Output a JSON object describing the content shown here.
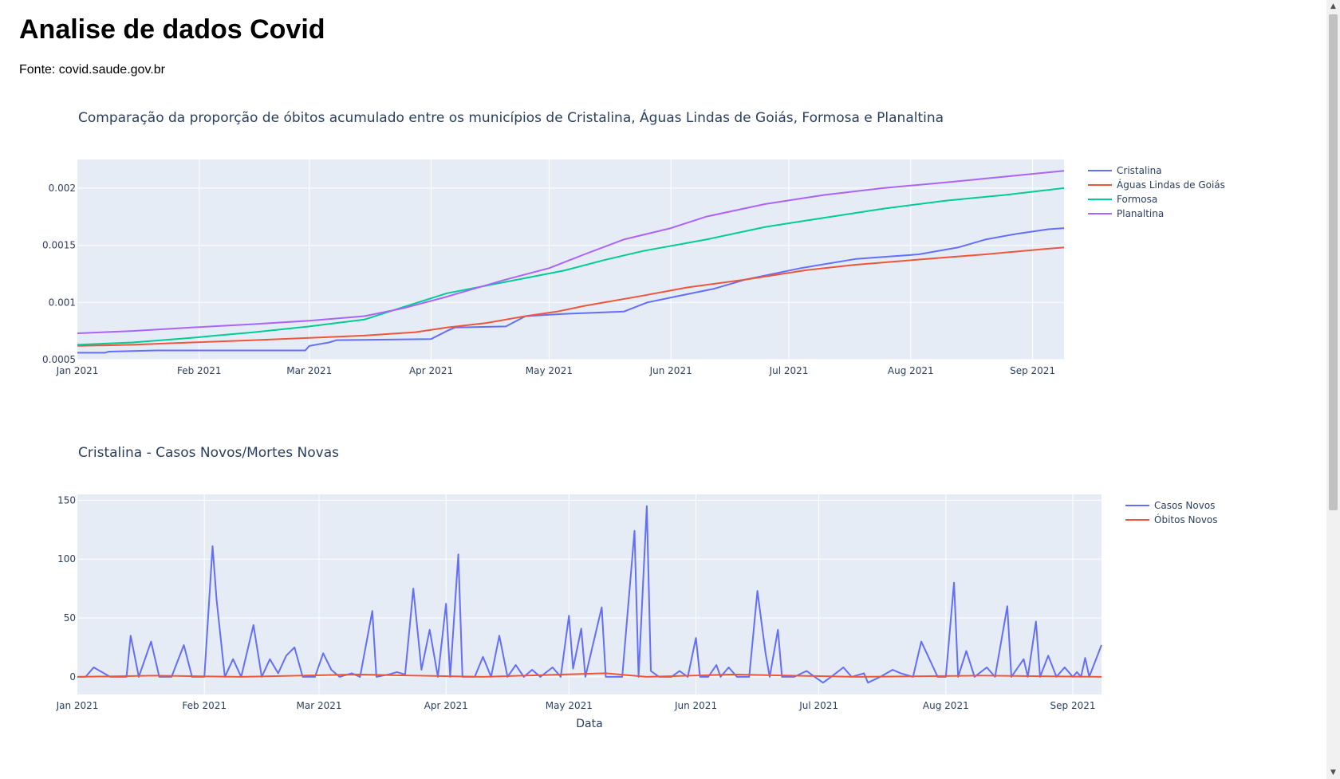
{
  "page": {
    "title": "Analise de dados Covid",
    "source": "Fonte: covid.saude.gov.br"
  },
  "chart_data": [
    {
      "type": "line",
      "title": "Comparação da proporção de óbitos acumulado entre os municípios de Cristalina, Águas Lindas de Goiás, Formosa e Planaltina",
      "x_ticks": [
        "Jan 2021",
        "Feb 2021",
        "Mar 2021",
        "Apr 2021",
        "May 2021",
        "Jun 2021",
        "Jul 2021",
        "Aug 2021",
        "Sep 2021"
      ],
      "y_ticks": [
        "0.0005",
        "0.001",
        "0.0015",
        "0.002"
      ],
      "ylim": [
        0.0005,
        0.00225
      ],
      "xlim": [
        "2021-01-01",
        "2021-09-09"
      ],
      "grid": true,
      "legend_position": "right",
      "series": [
        {
          "name": "Cristalina",
          "color": "#636efa",
          "points": [
            [
              "2021-01-01",
              0.00056
            ],
            [
              "2021-01-08",
              0.00056
            ],
            [
              "2021-01-09",
              0.00057
            ],
            [
              "2021-01-21",
              0.00058
            ],
            [
              "2021-02-28",
              0.00058
            ],
            [
              "2021-03-01",
              0.00062
            ],
            [
              "2021-03-06",
              0.00065
            ],
            [
              "2021-03-08",
              0.00067
            ],
            [
              "2021-04-01",
              0.00068
            ],
            [
              "2021-04-05",
              0.00075
            ],
            [
              "2021-04-07",
              0.00078
            ],
            [
              "2021-04-20",
              0.00079
            ],
            [
              "2021-04-25",
              0.00088
            ],
            [
              "2021-05-05",
              0.0009
            ],
            [
              "2021-05-20",
              0.00092
            ],
            [
              "2021-05-26",
              0.001
            ],
            [
              "2021-06-02",
              0.00105
            ],
            [
              "2021-06-12",
              0.00112
            ],
            [
              "2021-06-20",
              0.0012
            ],
            [
              "2021-07-04",
              0.0013
            ],
            [
              "2021-07-18",
              0.00138
            ],
            [
              "2021-08-03",
              0.00142
            ],
            [
              "2021-08-13",
              0.00148
            ],
            [
              "2021-08-20",
              0.00155
            ],
            [
              "2021-08-28",
              0.0016
            ],
            [
              "2021-09-05",
              0.00164
            ],
            [
              "2021-09-09",
              0.00165
            ]
          ]
        },
        {
          "name": "Águas Lindas de Goiás",
          "color": "#ef553b",
          "points": [
            [
              "2021-01-01",
              0.00062
            ],
            [
              "2021-01-15",
              0.00063
            ],
            [
              "2021-01-30",
              0.00065
            ],
            [
              "2021-02-15",
              0.00067
            ],
            [
              "2021-03-01",
              0.00069
            ],
            [
              "2021-03-15",
              0.00071
            ],
            [
              "2021-03-28",
              0.00074
            ],
            [
              "2021-04-05",
              0.00078
            ],
            [
              "2021-04-15",
              0.00082
            ],
            [
              "2021-04-25",
              0.00088
            ],
            [
              "2021-05-03",
              0.00092
            ],
            [
              "2021-05-10",
              0.00097
            ],
            [
              "2021-05-25",
              0.00106
            ],
            [
              "2021-06-05",
              0.00113
            ],
            [
              "2021-06-20",
              0.0012
            ],
            [
              "2021-07-05",
              0.00128
            ],
            [
              "2021-07-18",
              0.00133
            ],
            [
              "2021-08-05",
              0.00138
            ],
            [
              "2021-08-20",
              0.00142
            ],
            [
              "2021-09-05",
              0.00147
            ],
            [
              "2021-09-09",
              0.00148
            ]
          ]
        },
        {
          "name": "Formosa",
          "color": "#00cc96",
          "points": [
            [
              "2021-01-01",
              0.00063
            ],
            [
              "2021-01-15",
              0.00065
            ],
            [
              "2021-01-30",
              0.00069
            ],
            [
              "2021-02-15",
              0.00074
            ],
            [
              "2021-03-01",
              0.00079
            ],
            [
              "2021-03-15",
              0.00085
            ],
            [
              "2021-03-25",
              0.00096
            ],
            [
              "2021-04-05",
              0.00108
            ],
            [
              "2021-04-20",
              0.00118
            ],
            [
              "2021-05-05",
              0.00128
            ],
            [
              "2021-05-15",
              0.00137
            ],
            [
              "2021-05-25",
              0.00145
            ],
            [
              "2021-06-10",
              0.00155
            ],
            [
              "2021-06-25",
              0.00166
            ],
            [
              "2021-07-10",
              0.00174
            ],
            [
              "2021-07-25",
              0.00182
            ],
            [
              "2021-08-10",
              0.00189
            ],
            [
              "2021-08-25",
              0.00194
            ],
            [
              "2021-09-09",
              0.002
            ]
          ]
        },
        {
          "name": "Planaltina",
          "color": "#ab63fa",
          "points": [
            [
              "2021-01-01",
              0.00073
            ],
            [
              "2021-01-15",
              0.00075
            ],
            [
              "2021-01-30",
              0.00078
            ],
            [
              "2021-02-15",
              0.00081
            ],
            [
              "2021-03-01",
              0.00084
            ],
            [
              "2021-03-15",
              0.00088
            ],
            [
              "2021-03-25",
              0.00095
            ],
            [
              "2021-04-05",
              0.00105
            ],
            [
              "2021-04-20",
              0.0012
            ],
            [
              "2021-05-01",
              0.0013
            ],
            [
              "2021-05-10",
              0.00142
            ],
            [
              "2021-05-20",
              0.00155
            ],
            [
              "2021-06-01",
              0.00165
            ],
            [
              "2021-06-10",
              0.00175
            ],
            [
              "2021-06-25",
              0.00186
            ],
            [
              "2021-07-10",
              0.00194
            ],
            [
              "2021-07-25",
              0.002
            ],
            [
              "2021-08-10",
              0.00205
            ],
            [
              "2021-08-25",
              0.0021
            ],
            [
              "2021-09-09",
              0.00215
            ]
          ]
        }
      ]
    },
    {
      "type": "line",
      "title": "Cristalina - Casos Novos/Mortes Novas",
      "xlabel": "Data",
      "x_ticks": [
        "Jan 2021",
        "Feb 2021",
        "Mar 2021",
        "Apr 2021",
        "May 2021",
        "Jun 2021",
        "Jul 2021",
        "Aug 2021",
        "Sep 2021"
      ],
      "y_ticks": [
        "0",
        "50",
        "100",
        "150"
      ],
      "ylim": [
        -15,
        155
      ],
      "xlim": [
        "2021-01-01",
        "2021-09-08"
      ],
      "grid": true,
      "legend_position": "right",
      "series": [
        {
          "name": "Casos Novos",
          "color": "#636efa",
          "points": [
            [
              "2021-01-01",
              0
            ],
            [
              "2021-01-03",
              0
            ],
            [
              "2021-01-05",
              8
            ],
            [
              "2021-01-07",
              4
            ],
            [
              "2021-01-09",
              0
            ],
            [
              "2021-01-11",
              0
            ],
            [
              "2021-01-13",
              0
            ],
            [
              "2021-01-14",
              35
            ],
            [
              "2021-01-16",
              0
            ],
            [
              "2021-01-19",
              30
            ],
            [
              "2021-01-21",
              0
            ],
            [
              "2021-01-24",
              0
            ],
            [
              "2021-01-27",
              27
            ],
            [
              "2021-01-29",
              0
            ],
            [
              "2021-02-01",
              0
            ],
            [
              "2021-02-03",
              111
            ],
            [
              "2021-02-04",
              65
            ],
            [
              "2021-02-06",
              0
            ],
            [
              "2021-02-08",
              15
            ],
            [
              "2021-02-10",
              0
            ],
            [
              "2021-02-13",
              44
            ],
            [
              "2021-02-15",
              0
            ],
            [
              "2021-02-17",
              15
            ],
            [
              "2021-02-19",
              3
            ],
            [
              "2021-02-21",
              18
            ],
            [
              "2021-02-23",
              25
            ],
            [
              "2021-02-25",
              0
            ],
            [
              "2021-02-28",
              0
            ],
            [
              "2021-03-02",
              20
            ],
            [
              "2021-03-04",
              6
            ],
            [
              "2021-03-06",
              0
            ],
            [
              "2021-03-09",
              3
            ],
            [
              "2021-03-11",
              0
            ],
            [
              "2021-03-14",
              56
            ],
            [
              "2021-03-15",
              0
            ],
            [
              "2021-03-18",
              2
            ],
            [
              "2021-03-20",
              4
            ],
            [
              "2021-03-22",
              2
            ],
            [
              "2021-03-24",
              75
            ],
            [
              "2021-03-26",
              6
            ],
            [
              "2021-03-28",
              40
            ],
            [
              "2021-03-30",
              0
            ],
            [
              "2021-04-01",
              62
            ],
            [
              "2021-04-02",
              0
            ],
            [
              "2021-04-04",
              104
            ],
            [
              "2021-04-05",
              0
            ],
            [
              "2021-04-08",
              0
            ],
            [
              "2021-04-10",
              17
            ],
            [
              "2021-04-12",
              0
            ],
            [
              "2021-04-14",
              35
            ],
            [
              "2021-04-16",
              0
            ],
            [
              "2021-04-18",
              10
            ],
            [
              "2021-04-20",
              0
            ],
            [
              "2021-04-22",
              6
            ],
            [
              "2021-04-24",
              0
            ],
            [
              "2021-04-27",
              8
            ],
            [
              "2021-04-29",
              0
            ],
            [
              "2021-05-01",
              52
            ],
            [
              "2021-05-02",
              7
            ],
            [
              "2021-05-04",
              41
            ],
            [
              "2021-05-05",
              0
            ],
            [
              "2021-05-09",
              59
            ],
            [
              "2021-05-10",
              0
            ],
            [
              "2021-05-14",
              0
            ],
            [
              "2021-05-17",
              124
            ],
            [
              "2021-05-18",
              0
            ],
            [
              "2021-05-20",
              145
            ],
            [
              "2021-05-21",
              5
            ],
            [
              "2021-05-23",
              0
            ],
            [
              "2021-05-26",
              0
            ],
            [
              "2021-05-28",
              5
            ],
            [
              "2021-05-30",
              0
            ],
            [
              "2021-06-01",
              33
            ],
            [
              "2021-06-02",
              0
            ],
            [
              "2021-06-04",
              0
            ],
            [
              "2021-06-06",
              10
            ],
            [
              "2021-06-07",
              0
            ],
            [
              "2021-06-09",
              8
            ],
            [
              "2021-06-11",
              0
            ],
            [
              "2021-06-14",
              0
            ],
            [
              "2021-06-16",
              73
            ],
            [
              "2021-06-18",
              20
            ],
            [
              "2021-06-19",
              0
            ],
            [
              "2021-06-21",
              40
            ],
            [
              "2021-06-22",
              0
            ],
            [
              "2021-06-25",
              0
            ],
            [
              "2021-06-28",
              5
            ],
            [
              "2021-06-30",
              0
            ],
            [
              "2021-07-02",
              -5
            ],
            [
              "2021-07-04",
              0
            ],
            [
              "2021-07-07",
              8
            ],
            [
              "2021-07-09",
              0
            ],
            [
              "2021-07-12",
              3
            ],
            [
              "2021-07-13",
              -5
            ],
            [
              "2021-07-16",
              0
            ],
            [
              "2021-07-19",
              6
            ],
            [
              "2021-07-21",
              3
            ],
            [
              "2021-07-24",
              0
            ],
            [
              "2021-07-26",
              30
            ],
            [
              "2021-07-28",
              15
            ],
            [
              "2021-07-30",
              0
            ],
            [
              "2021-08-01",
              0
            ],
            [
              "2021-08-03",
              80
            ],
            [
              "2021-08-04",
              0
            ],
            [
              "2021-08-06",
              22
            ],
            [
              "2021-08-08",
              0
            ],
            [
              "2021-08-11",
              8
            ],
            [
              "2021-08-13",
              0
            ],
            [
              "2021-08-16",
              60
            ],
            [
              "2021-08-17",
              0
            ],
            [
              "2021-08-20",
              15
            ],
            [
              "2021-08-21",
              0
            ],
            [
              "2021-08-23",
              47
            ],
            [
              "2021-08-24",
              0
            ],
            [
              "2021-08-26",
              18
            ],
            [
              "2021-08-28",
              0
            ],
            [
              "2021-08-30",
              8
            ],
            [
              "2021-09-01",
              0
            ],
            [
              "2021-09-02",
              4
            ],
            [
              "2021-09-03",
              0
            ],
            [
              "2021-09-04",
              16
            ],
            [
              "2021-09-05",
              0
            ],
            [
              "2021-09-08",
              27
            ]
          ]
        },
        {
          "name": "Óbitos Novos",
          "color": "#ef553b",
          "points": [
            [
              "2021-01-01",
              0
            ],
            [
              "2021-01-20",
              1
            ],
            [
              "2021-02-10",
              0
            ],
            [
              "2021-03-10",
              2
            ],
            [
              "2021-04-10",
              0
            ],
            [
              "2021-05-10",
              3
            ],
            [
              "2021-05-20",
              0
            ],
            [
              "2021-06-10",
              2
            ],
            [
              "2021-07-10",
              0
            ],
            [
              "2021-08-10",
              1
            ],
            [
              "2021-09-08",
              0
            ]
          ]
        }
      ]
    }
  ]
}
